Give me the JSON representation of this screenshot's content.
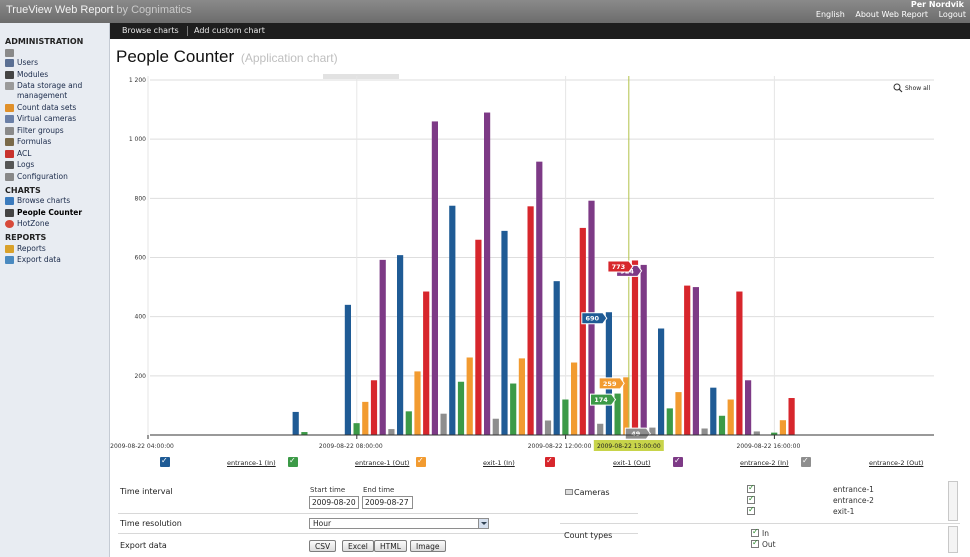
{
  "app": {
    "name": "TrueView Web Report",
    "by": "by Cognimatics"
  },
  "user": {
    "name": "Per Nordvik"
  },
  "top_links": [
    "English",
    "About Web Report",
    "Logout"
  ],
  "nav": [
    "Browse charts",
    "Add custom chart"
  ],
  "sidebar": {
    "sections": [
      {
        "title": "ADMINISTRATION",
        "items": [
          {
            "label": "",
            "icon": "building-icon"
          },
          {
            "label": "Users",
            "icon": "users-icon"
          },
          {
            "label": "Modules",
            "icon": "modules-icon"
          },
          {
            "label": "Data storage and management",
            "icon": "database-icon"
          },
          {
            "label": "Count data sets",
            "icon": "dataset-icon"
          },
          {
            "label": "Virtual cameras",
            "icon": "camera-icon"
          },
          {
            "label": "Filter groups",
            "icon": "filter-icon"
          },
          {
            "label": "Formulas",
            "icon": "formula-icon"
          },
          {
            "label": "ACL",
            "icon": "acl-icon"
          },
          {
            "label": "Logs",
            "icon": "logs-icon"
          },
          {
            "label": "Configuration",
            "icon": "config-icon"
          }
        ]
      },
      {
        "title": "CHARTS",
        "items": [
          {
            "label": "Browse charts",
            "icon": "chart-icon"
          },
          {
            "label": "People Counter",
            "icon": "people-icon",
            "active": true
          },
          {
            "label": "HotZone",
            "icon": "hotzone-icon"
          }
        ]
      },
      {
        "title": "REPORTS",
        "items": [
          {
            "label": "Reports",
            "icon": "reports-icon"
          },
          {
            "label": "Export data",
            "icon": "export-icon"
          }
        ]
      }
    ]
  },
  "page": {
    "title": "People Counter",
    "subtitle": "(Application chart)"
  },
  "chart_data": {
    "type": "bar",
    "show_all_label": "Show all",
    "y_ticks": [
      "1 200",
      "1 000",
      "800",
      "600",
      "400",
      "200"
    ],
    "ylim": [
      0,
      1200
    ],
    "x_tick_labels": [
      "2009-08-22 04:00:00",
      "2009-08-22 08:00:00",
      "2009-08-22 12:00:00",
      "2009-08-22 16:00:00"
    ],
    "x_tick_hours": [
      4,
      8,
      12,
      16
    ],
    "hover_label": "2009-08-22 13:00:00",
    "hover_hour": 13,
    "categories": [
      7,
      8,
      9,
      10,
      11,
      12,
      13,
      14,
      15,
      16,
      17,
      18
    ],
    "series": [
      {
        "name": "entrance-1 (In)",
        "color": "#1f5b95",
        "values": [
          78,
          440,
          608,
          775,
          690,
          520,
          415,
          360,
          160,
          0,
          0,
          0
        ]
      },
      {
        "name": "entrance-1 (Out)",
        "color": "#3c9a47",
        "values": [
          10,
          40,
          80,
          180,
          174,
          120,
          140,
          90,
          65,
          8,
          0,
          0
        ]
      },
      {
        "name": "exit-1 (In)",
        "color": "#f29b30",
        "values": [
          0,
          112,
          215,
          262,
          259,
          245,
          195,
          145,
          120,
          50,
          0,
          0
        ]
      },
      {
        "name": "exit-1 (Out)",
        "color": "#d7262c",
        "values": [
          0,
          185,
          485,
          660,
          773,
          700,
          590,
          505,
          485,
          125,
          0,
          0
        ]
      },
      {
        "name": "entrance-2 (In)",
        "color": "#7d3a86",
        "values": [
          0,
          592,
          1060,
          1090,
          924,
          792,
          575,
          500,
          185,
          0,
          0,
          0
        ]
      },
      {
        "name": "entrance-2 (Out)",
        "color": "#8e8e8e",
        "values": [
          0,
          20,
          72,
          55,
          49,
          38,
          25,
          22,
          12,
          0,
          0,
          0
        ]
      }
    ],
    "annotations": [
      {
        "text": "924",
        "series": 4
      },
      {
        "text": "773",
        "series": 3
      },
      {
        "text": "690",
        "series": 0
      },
      {
        "text": "259",
        "series": 2
      },
      {
        "text": "174",
        "series": 1
      },
      {
        "text": "49",
        "series": 5
      }
    ]
  },
  "legend": [
    {
      "label": "entrance-1 (In)",
      "color": "#1f5b95"
    },
    {
      "label": "entrance-1 (Out)",
      "color": "#3c9a47"
    },
    {
      "label": "exit-1 (In)",
      "color": "#f29b30"
    },
    {
      "label": "exit-1 (Out)",
      "color": "#d7262c"
    },
    {
      "label": "entrance-2 (In)",
      "color": "#7d3a86"
    },
    {
      "label": "entrance-2 (Out)",
      "color": "#8e8e8e"
    }
  ],
  "form": {
    "time_interval_label": "Time interval",
    "start_time_label": "Start time",
    "start_time_value": "2009-08-20",
    "end_time_label": "End time",
    "end_time_value": "2009-08-27",
    "time_resolution_label": "Time resolution",
    "time_resolution_value": "Hour",
    "export_data_label": "Export data",
    "export_buttons": [
      "CSV",
      "Excel",
      "HTML",
      "Image"
    ],
    "cameras_label": "Cameras",
    "cameras": [
      "entrance-1",
      "entrance-2",
      "exit-1"
    ],
    "count_types_label": "Count types",
    "count_types": [
      "In",
      "Out"
    ]
  }
}
